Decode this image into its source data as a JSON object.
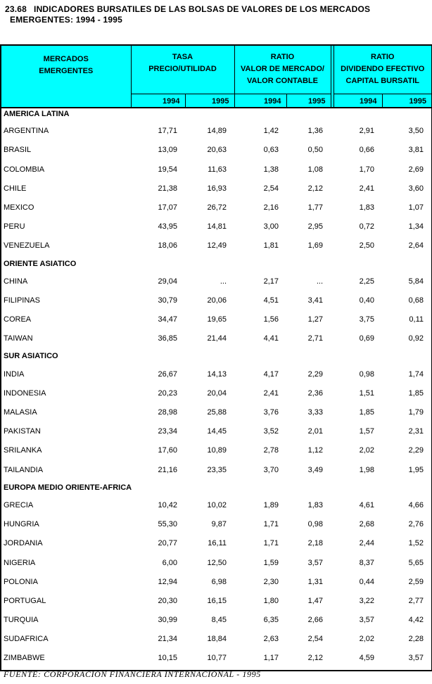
{
  "title": {
    "number": "23.68",
    "line1": "INDICADORES BURSATILES DE LAS BOLSAS DE VALORES DE LOS MERCADOS",
    "line2": "EMERGENTES: 1994 - 1995"
  },
  "colors": {
    "header_bg": "#00FFFF",
    "border": "#000000",
    "text": "#000000"
  },
  "table": {
    "col_groups": [
      {
        "label_lines": [
          "MERCADOS",
          "EMERGENTES"
        ]
      },
      {
        "label_lines": [
          "TASA",
          "PRECIO/UTILIDAD"
        ],
        "years": [
          "1994",
          "1995"
        ]
      },
      {
        "label_lines": [
          "RATIO",
          "VALOR DE MERCADO/",
          "VALOR CONTABLE"
        ],
        "years": [
          "1994",
          "1995"
        ]
      },
      {
        "label_lines": [
          "RATIO",
          "DIVIDENDO EFECTIVO",
          "CAPITAL BURSATIL"
        ],
        "years": [
          "1994",
          "1995"
        ]
      }
    ],
    "sections": [
      {
        "name": "AMERICA LATINA",
        "rows": [
          {
            "country": "ARGENTINA",
            "values": [
              "17,71",
              "14,89",
              "1,42",
              "1,36",
              "2,91",
              "3,50"
            ]
          },
          {
            "country": "BRASIL",
            "values": [
              "13,09",
              "20,63",
              "0,63",
              "0,50",
              "0,66",
              "3,81"
            ]
          },
          {
            "country": "COLOMBIA",
            "values": [
              "19,54",
              "11,63",
              "1,38",
              "1,08",
              "1,70",
              "2,69"
            ]
          },
          {
            "country": "CHILE",
            "values": [
              "21,38",
              "16,93",
              "2,54",
              "2,12",
              "2,41",
              "3,60"
            ]
          },
          {
            "country": "MEXICO",
            "values": [
              "17,07",
              "26,72",
              "2,16",
              "1,77",
              "1,83",
              "1,07"
            ]
          },
          {
            "country": "PERU",
            "values": [
              "43,95",
              "14,81",
              "3,00",
              "2,95",
              "0,72",
              "1,34"
            ]
          },
          {
            "country": "VENEZUELA",
            "values": [
              "18,06",
              "12,49",
              "1,81",
              "1,69",
              "2,50",
              "2,64"
            ]
          }
        ]
      },
      {
        "name": "ORIENTE ASIATICO",
        "rows": [
          {
            "country": "CHINA",
            "values": [
              "29,04",
              "...",
              "2,17",
              "...",
              "2,25",
              "5,84"
            ]
          },
          {
            "country": "FILIPINAS",
            "values": [
              "30,79",
              "20,06",
              "4,51",
              "3,41",
              "0,40",
              "0,68"
            ]
          },
          {
            "country": "COREA",
            "values": [
              "34,47",
              "19,65",
              "1,56",
              "1,27",
              "3,75",
              "0,11"
            ]
          },
          {
            "country": "TAIWAN",
            "values": [
              "36,85",
              "21,44",
              "4,41",
              "2,71",
              "0,69",
              "0,92"
            ]
          }
        ]
      },
      {
        "name": "SUR ASIATICO",
        "rows": [
          {
            "country": "INDIA",
            "values": [
              "26,67",
              "14,13",
              "4,17",
              "2,29",
              "0,98",
              "1,74"
            ]
          },
          {
            "country": "INDONESIA",
            "values": [
              "20,23",
              "20,04",
              "2,41",
              "2,36",
              "1,51",
              "1,85"
            ]
          },
          {
            "country": "MALASIA",
            "values": [
              "28,98",
              "25,88",
              "3,76",
              "3,33",
              "1,85",
              "1,79"
            ]
          },
          {
            "country": "PAKISTAN",
            "values": [
              "23,34",
              "14,45",
              "3,52",
              "2,01",
              "1,57",
              "2,31"
            ]
          },
          {
            "country": "SRILANKA",
            "values": [
              "17,60",
              "10,89",
              "2,78",
              "1,12",
              "2,02",
              "2,29"
            ]
          },
          {
            "country": "TAILANDIA",
            "values": [
              "21,16",
              "23,35",
              "3,70",
              "3,49",
              "1,98",
              "1,95"
            ]
          }
        ]
      },
      {
        "name": "EUROPA MEDIO ORIENTE-AFRICA",
        "rows": [
          {
            "country": "GRECIA",
            "values": [
              "10,42",
              "10,02",
              "1,89",
              "1,83",
              "4,61",
              "4,66"
            ]
          },
          {
            "country": "HUNGRIA",
            "values": [
              "55,30",
              "9,87",
              "1,71",
              "0,98",
              "2,68",
              "2,76"
            ]
          },
          {
            "country": "JORDANIA",
            "values": [
              "20,77",
              "16,11",
              "1,71",
              "2,18",
              "2,44",
              "1,52"
            ]
          },
          {
            "country": "NIGERIA",
            "values": [
              "6,00",
              "12,50",
              "1,59",
              "3,57",
              "8,37",
              "5,65"
            ]
          },
          {
            "country": "POLONIA",
            "values": [
              "12,94",
              "6,98",
              "2,30",
              "1,31",
              "0,44",
              "2,59"
            ]
          },
          {
            "country": "PORTUGAL",
            "values": [
              "20,30",
              "16,15",
              "1,80",
              "1,47",
              "3,22",
              "2,77"
            ]
          },
          {
            "country": "TURQUIA",
            "values": [
              "30,99",
              "8,45",
              "6,35",
              "2,66",
              "3,57",
              "4,42"
            ]
          },
          {
            "country": "SUDAFRICA",
            "values": [
              "21,34",
              "18,84",
              "2,63",
              "2,54",
              "2,02",
              "2,28"
            ]
          },
          {
            "country": "ZIMBABWE",
            "values": [
              "10,15",
              "10,77",
              "1,17",
              "2,12",
              "4,59",
              "3,57"
            ]
          }
        ]
      }
    ]
  },
  "footer": {
    "source": "FUENTE: CORPORACION FINANCIERA INTERNACIONAL - 1995"
  }
}
